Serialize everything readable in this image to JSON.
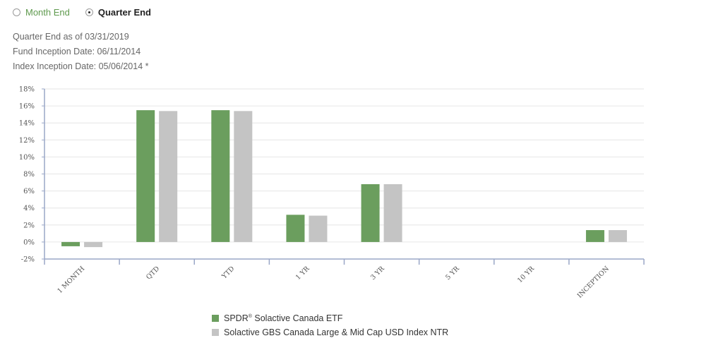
{
  "period_toggle": {
    "options": [
      {
        "label": "Month End",
        "selected": false
      },
      {
        "label": "Quarter End",
        "selected": true
      }
    ]
  },
  "info": {
    "as_of": "Quarter End as of 03/31/2019",
    "fund_inception": "Fund Inception Date: 06/11/2014",
    "index_inception": "Index Inception Date: 05/06/2014 *"
  },
  "colors": {
    "fund": "#6b9e5e",
    "index": "#c4c4c4",
    "grid": "#e6e6e6",
    "axis": "#9aa7c7"
  },
  "chart_data": {
    "type": "bar",
    "categories": [
      "1 MONTH",
      "QTD",
      "YTD",
      "1 YR",
      "3 YR",
      "5 YR",
      "10 YR",
      "INCEPTION"
    ],
    "series": [
      {
        "name": "SPDR® Solactive Canada ETF",
        "values": [
          -0.5,
          15.5,
          15.5,
          3.2,
          6.8,
          null,
          null,
          1.4
        ]
      },
      {
        "name": "Solactive GBS Canada Large & Mid Cap USD Index NTR",
        "values": [
          -0.6,
          15.4,
          15.4,
          3.1,
          6.8,
          null,
          null,
          1.4
        ]
      }
    ],
    "ylim": [
      -2,
      18
    ],
    "yticks": [
      -2,
      0,
      2,
      4,
      6,
      8,
      10,
      12,
      14,
      16,
      18
    ],
    "ytick_suffix": "%",
    "legend": {
      "fund_brand": "SPDR",
      "fund_mark": "®",
      "fund_rest": " Solactive Canada ETF",
      "index": "Solactive GBS Canada Large & Mid Cap USD Index NTR"
    }
  }
}
